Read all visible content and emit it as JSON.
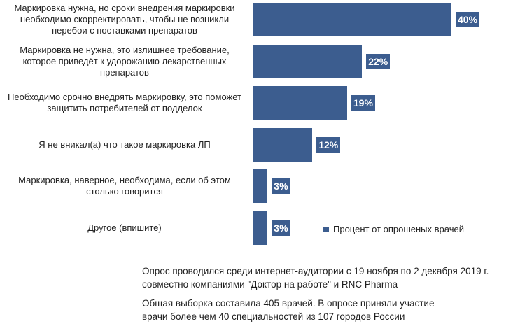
{
  "chart_data": {
    "type": "bar",
    "orientation": "horizontal",
    "categories": [
      "Маркировка нужна, но сроки внедрения маркировки необходимо скорректировать, чтобы не возникли перебои с поставками препаратов",
      "Маркировка не нужна, это излишнее требование, которое приведёт к удорожанию лекарственных препаратов",
      "Необходимо срочно внедрять маркировку, это поможет защитить потребителей от подделок",
      "Я не вникал(а) что такое маркировка ЛП",
      "Маркировка, наверное, необходима, если об этом столько говорится",
      "Другое (впишите)"
    ],
    "series": [
      {
        "name": "Процент от опрошеных врачей",
        "values": [
          40,
          22,
          19,
          12,
          3,
          3
        ],
        "labels": [
          "40%",
          "22%",
          "19%",
          "12%",
          "3%",
          "3%"
        ],
        "color": "#3c5d8f"
      }
    ],
    "xlim": [
      0,
      40
    ],
    "grid": false,
    "legend": "bottom-right"
  },
  "notes": {
    "line1": "Опрос проводился среди интернет-аудитории с 19 ноября по 2 декабря 2019 г.",
    "line2": "совместно компаниями \"Доктор на работе\" и RNC Pharma",
    "line3": "Общая выборка составила 405 врачей. В опросе приняли участие",
    "line4": "врачи более чем 40 специальностей из 107 городов России"
  }
}
